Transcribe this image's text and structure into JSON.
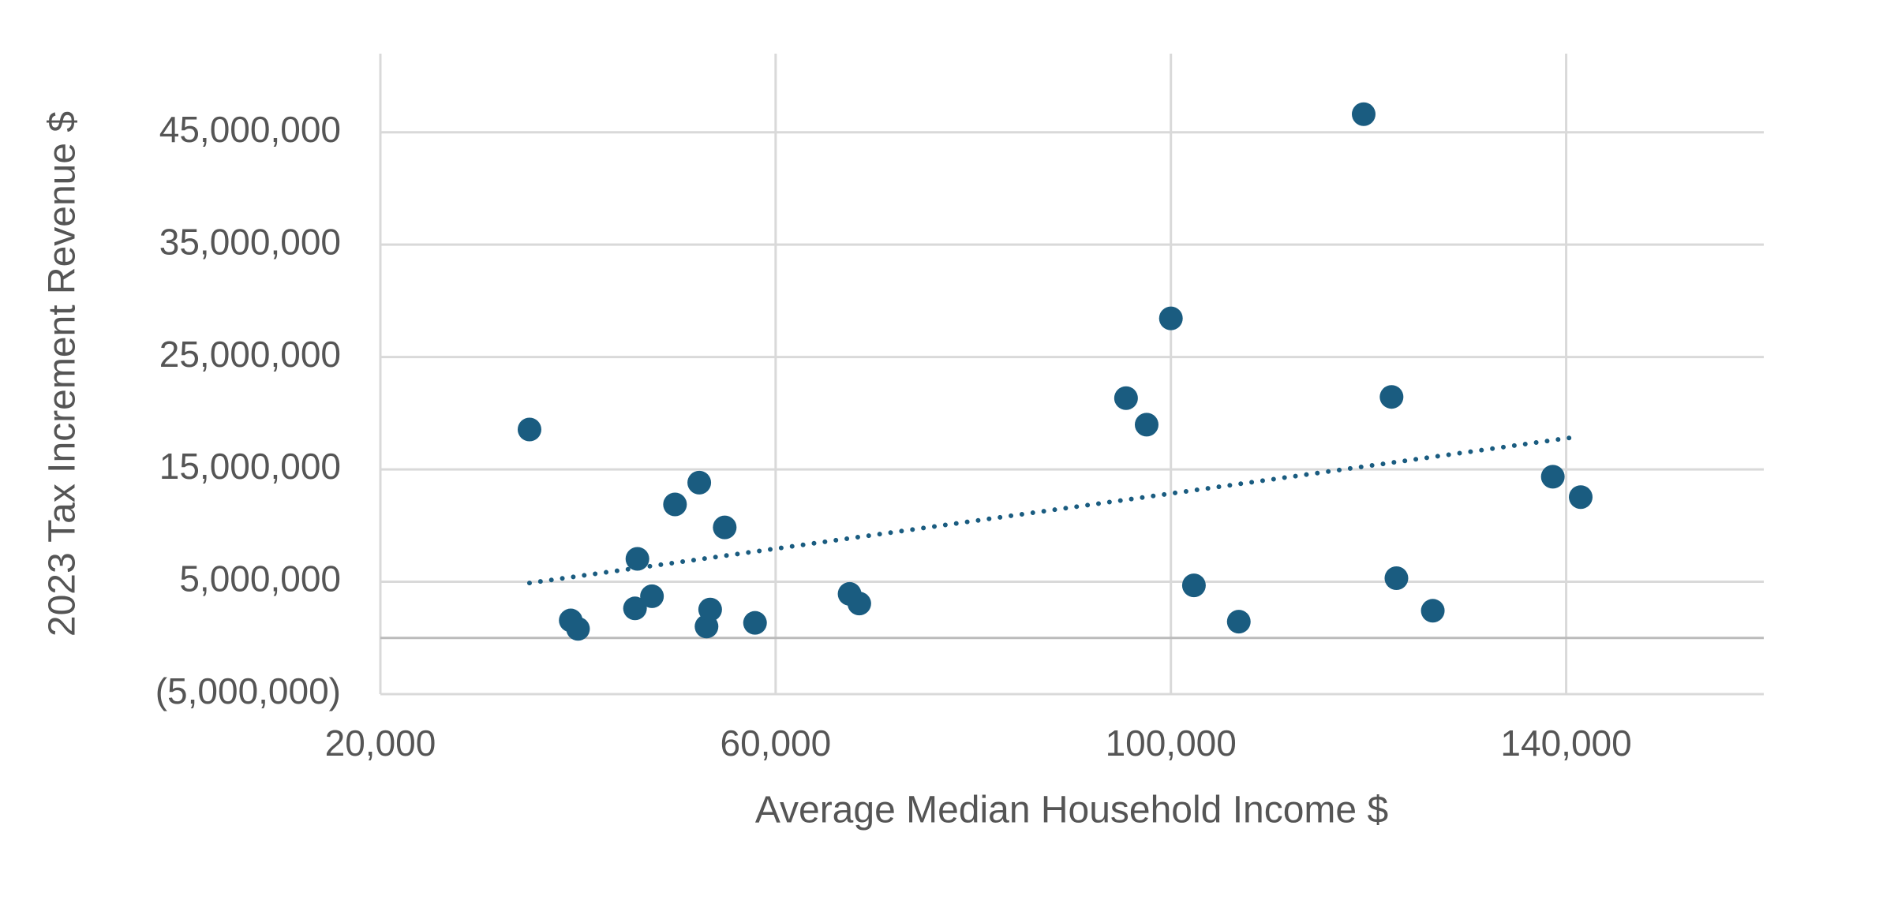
{
  "chart_data": {
    "type": "scatter",
    "x_label": "Average Median Household Income $",
    "y_label": "2023 Tax Increment Revenue $",
    "x": [
      35092,
      39264,
      40000,
      45767,
      46012,
      47485,
      49816,
      52270,
      53006,
      53374,
      54847,
      57914,
      67485,
      68466,
      95460,
      97546,
      100000,
      102331,
      106871,
      119509,
      122331,
      122822,
      126503,
      138650,
      141472
    ],
    "values": [
      18550000,
      1560000,
      810000,
      2630000,
      7040000,
      3710000,
      11880000,
      13820000,
      1020000,
      2530000,
      9840000,
      1340000,
      3920000,
      3060000,
      21340000,
      18980000,
      28440000,
      4680000,
      1450000,
      46610000,
      21450000,
      5320000,
      2420000,
      14350000,
      12530000
    ],
    "color": "#1a5c80",
    "trendline": {
      "x": [
        35092,
        141104
      ],
      "values": [
        4890000,
        17900000
      ],
      "color": "#1a5c80"
    },
    "xlim": [
      20000,
      160000
    ],
    "xticks": [
      {
        "value": 20000,
        "label": "20,000"
      },
      {
        "value": 60000,
        "label": "60,000"
      },
      {
        "value": 100000,
        "label": "100,000"
      },
      {
        "value": 140000,
        "label": "140,000"
      }
    ],
    "ylim": [
      -5000000,
      52000000
    ],
    "yticks": [
      {
        "value": -5000000,
        "label": "(5,000,000)"
      },
      {
        "value": 5000000,
        "label": "5,000,000"
      },
      {
        "value": 15000000,
        "label": "15,000,000"
      },
      {
        "value": 25000000,
        "label": "25,000,000"
      },
      {
        "value": 35000000,
        "label": "35,000,000"
      },
      {
        "value": 45000000,
        "label": "45,000,000"
      }
    ],
    "grid": true
  }
}
